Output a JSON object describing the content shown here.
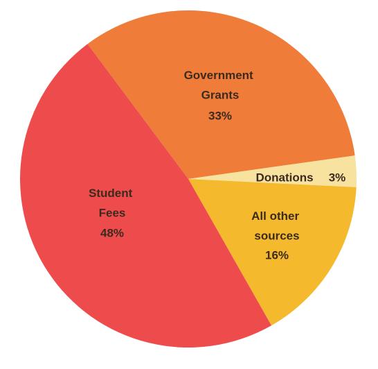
{
  "chart_data": {
    "type": "pie",
    "categories": [
      "Government Grants",
      "Donations",
      "All other sources",
      "Student Fees"
    ],
    "values": [
      33,
      3,
      16,
      48
    ],
    "value_labels": [
      "33%",
      "3%",
      "16%",
      "48%"
    ],
    "colors": [
      "#f07c3a",
      "#f8e2a0",
      "#f4b92c",
      "#ee4c4c"
    ]
  }
}
